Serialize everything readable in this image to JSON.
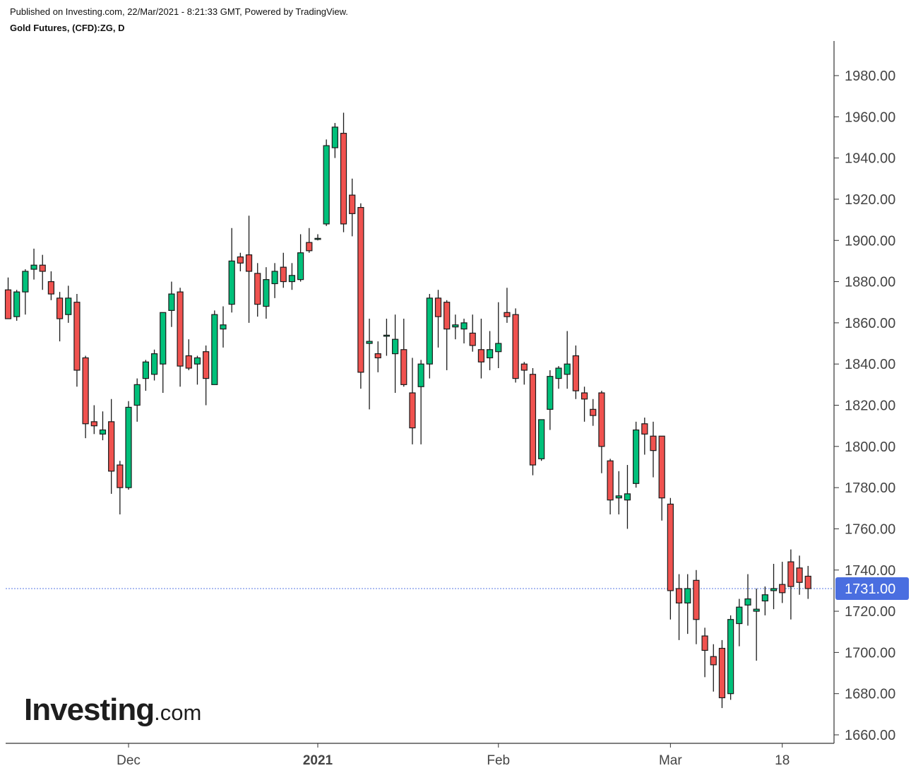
{
  "header": {
    "published": "Published on Investing.com, 22/Mar/2021 - 8:21:33 GMT, Powered by TradingView.",
    "symbol": "Gold Futures, (CFD):ZG, D"
  },
  "logo": {
    "main": "Investing",
    "suffix": ".com"
  },
  "colors": {
    "up": "#00c07a",
    "down": "#f0524f",
    "outline": "#1a1a1a",
    "current_line": "#5a78e6",
    "price_tag": "#4a6ee0",
    "axis": "#333333"
  },
  "chart_data": {
    "type": "candlestick",
    "title": "Gold Futures, (CFD):ZG, D",
    "ylim": [
      1655,
      1995
    ],
    "y_ticks": [
      "1980.00",
      "1960.00",
      "1940.00",
      "1920.00",
      "1900.00",
      "1880.00",
      "1860.00",
      "1840.00",
      "1820.00",
      "1800.00",
      "1780.00",
      "1760.00",
      "1740.00",
      "1720.00",
      "1700.00",
      "1680.00",
      "1660.00"
    ],
    "x_labels": [
      {
        "label": "Dec",
        "bold": false,
        "index": 14
      },
      {
        "label": "2021",
        "bold": true,
        "index": 36
      },
      {
        "label": "Feb",
        "bold": false,
        "index": 57
      },
      {
        "label": "Mar",
        "bold": false,
        "index": 77
      },
      {
        "label": "18",
        "bold": false,
        "index": 90
      }
    ],
    "current_price": 1731.0,
    "current_price_label": "1731.00",
    "candles": [
      [
        1876,
        1882,
        1862,
        1862
      ],
      [
        1863,
        1876,
        1861,
        1875
      ],
      [
        1875,
        1886,
        1864,
        1885
      ],
      [
        1886,
        1896,
        1881,
        1888
      ],
      [
        1888,
        1893,
        1876,
        1885
      ],
      [
        1880,
        1885,
        1871,
        1874
      ],
      [
        1872,
        1875,
        1851,
        1862
      ],
      [
        1864,
        1878,
        1860,
        1872
      ],
      [
        1870,
        1874,
        1829,
        1837
      ],
      [
        1843,
        1844,
        1804,
        1811
      ],
      [
        1812,
        1820,
        1806,
        1810
      ],
      [
        1806,
        1817,
        1803,
        1808
      ],
      [
        1812,
        1823,
        1777,
        1788
      ],
      [
        1791,
        1793,
        1767,
        1780
      ],
      [
        1780,
        1822,
        1779,
        1819
      ],
      [
        1820,
        1833,
        1812,
        1830
      ],
      [
        1833,
        1842,
        1827,
        1841
      ],
      [
        1835,
        1847,
        1832,
        1845
      ],
      [
        1840,
        1864,
        1826,
        1865
      ],
      [
        1866,
        1880,
        1858,
        1874
      ],
      [
        1875,
        1877,
        1829,
        1839
      ],
      [
        1844,
        1852,
        1837,
        1838
      ],
      [
        1840,
        1844,
        1830,
        1843
      ],
      [
        1846,
        1849,
        1820,
        1833
      ],
      [
        1830,
        1866,
        1830,
        1864
      ],
      [
        1857,
        1868,
        1848,
        1859
      ],
      [
        1869,
        1906,
        1865,
        1890
      ],
      [
        1892,
        1894,
        1885,
        1889
      ],
      [
        1893,
        1912,
        1860,
        1885
      ],
      [
        1884,
        1889,
        1863,
        1869
      ],
      [
        1868,
        1887,
        1862,
        1881
      ],
      [
        1879,
        1889,
        1872,
        1885
      ],
      [
        1887,
        1894,
        1877,
        1880
      ],
      [
        1880,
        1889,
        1876,
        1883
      ],
      [
        1881,
        1903,
        1880,
        1894
      ],
      [
        1899,
        1906,
        1894,
        1895
      ],
      [
        1901,
        1903,
        1900,
        1901
      ],
      [
        1908,
        1949,
        1907,
        1946
      ],
      [
        1945,
        1957,
        1940,
        1955
      ],
      [
        1952,
        1962,
        1904,
        1908
      ],
      [
        1922,
        1930,
        1902,
        1913
      ],
      [
        1916,
        1918,
        1828,
        1836
      ],
      [
        1850,
        1862,
        1818,
        1851
      ],
      [
        1845,
        1851,
        1836,
        1843
      ],
      [
        1854,
        1862,
        1844,
        1854
      ],
      [
        1845,
        1864,
        1826,
        1852
      ],
      [
        1847,
        1862,
        1829,
        1830
      ],
      [
        1826,
        1843,
        1801,
        1809
      ],
      [
        1829,
        1842,
        1801,
        1840
      ],
      [
        1840,
        1874,
        1833,
        1872
      ],
      [
        1872,
        1876,
        1848,
        1863
      ],
      [
        1870,
        1871,
        1837,
        1857
      ],
      [
        1858,
        1864,
        1852,
        1859
      ],
      [
        1857,
        1862,
        1850,
        1860
      ],
      [
        1855,
        1864,
        1846,
        1849
      ],
      [
        1847,
        1862,
        1833,
        1841
      ],
      [
        1843,
        1856,
        1837,
        1847
      ],
      [
        1846,
        1870,
        1838,
        1850
      ],
      [
        1865,
        1877,
        1860,
        1863
      ],
      [
        1864,
        1867,
        1831,
        1833
      ],
      [
        1840,
        1841,
        1830,
        1837
      ],
      [
        1835,
        1838,
        1786,
        1791
      ],
      [
        1794,
        1812,
        1793,
        1813
      ],
      [
        1818,
        1837,
        1808,
        1834
      ],
      [
        1833,
        1839,
        1828,
        1838
      ],
      [
        1835,
        1856,
        1828,
        1840
      ],
      [
        1844,
        1849,
        1823,
        1827
      ],
      [
        1826,
        1829,
        1812,
        1823
      ],
      [
        1818,
        1823,
        1810,
        1815
      ],
      [
        1826,
        1827,
        1787,
        1800
      ],
      [
        1793,
        1794,
        1767,
        1774
      ],
      [
        1775,
        1788,
        1767,
        1776
      ],
      [
        1774,
        1791,
        1760,
        1777
      ],
      [
        1782,
        1812,
        1780,
        1808
      ],
      [
        1811,
        1814,
        1796,
        1806
      ],
      [
        1805,
        1812,
        1785,
        1798
      ],
      [
        1805,
        1805,
        1764,
        1775
      ],
      [
        1772,
        1775,
        1716,
        1730
      ],
      [
        1731,
        1738,
        1706,
        1724
      ],
      [
        1724,
        1738,
        1709,
        1731
      ],
      [
        1735,
        1740,
        1704,
        1716
      ],
      [
        1708,
        1712,
        1688,
        1701
      ],
      [
        1698,
        1704,
        1681,
        1694
      ],
      [
        1702,
        1706,
        1673,
        1678
      ],
      [
        1680,
        1718,
        1677,
        1716
      ],
      [
        1714,
        1726,
        1703,
        1722
      ],
      [
        1723,
        1738,
        1713,
        1726
      ],
      [
        1720,
        1731,
        1696,
        1721
      ],
      [
        1725,
        1732,
        1718,
        1728
      ],
      [
        1730,
        1743,
        1721,
        1731
      ],
      [
        1733,
        1744,
        1724,
        1729
      ],
      [
        1744,
        1750,
        1716,
        1732
      ],
      [
        1741,
        1747,
        1728,
        1734
      ],
      [
        1737,
        1742,
        1726,
        1731
      ]
    ]
  }
}
